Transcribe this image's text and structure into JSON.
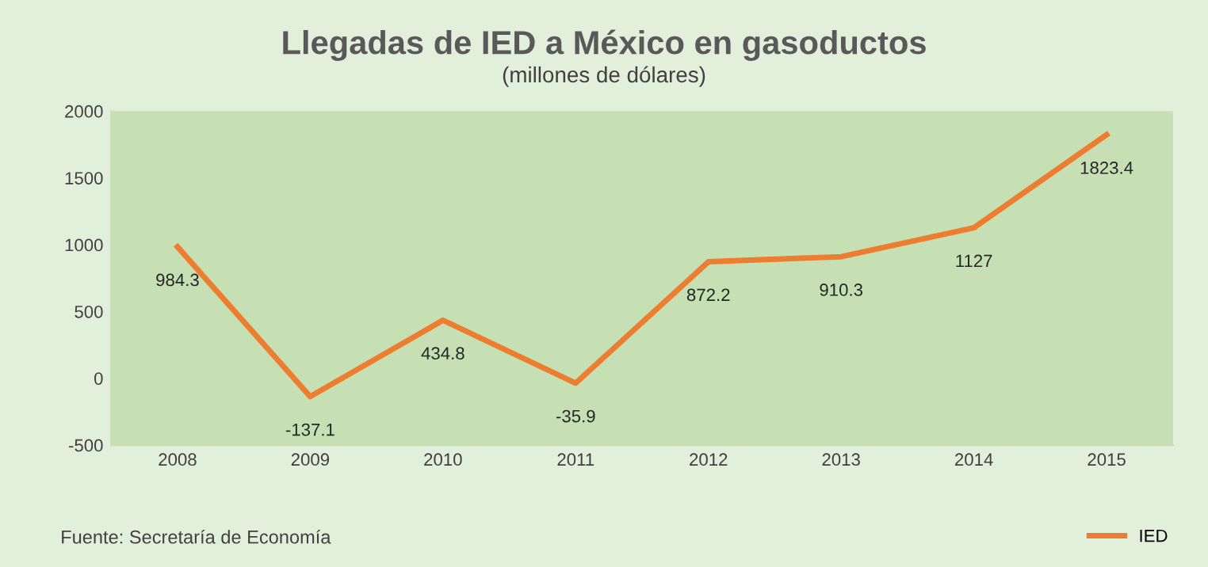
{
  "chart_data": {
    "type": "line",
    "title": "Llegadas de IED a México en gasoductos",
    "subtitle": "(millones de dólares)",
    "categories": [
      "2008",
      "2009",
      "2010",
      "2011",
      "2012",
      "2013",
      "2014",
      "2015"
    ],
    "series": [
      {
        "name": "IED",
        "color": "#ed7d31",
        "values": [
          984.3,
          -137.1,
          434.8,
          -35.9,
          872.2,
          910.3,
          1127,
          1823.4
        ]
      }
    ],
    "ylim": [
      -500,
      2000
    ],
    "yticks": [
      -500,
      0,
      500,
      1000,
      1500,
      2000
    ],
    "grid": false,
    "legend": "bottom right",
    "marker": "none",
    "line_style": "solid",
    "data_labels": true,
    "annotations": [
      "Fuente: Secretaría de Economía"
    ]
  }
}
